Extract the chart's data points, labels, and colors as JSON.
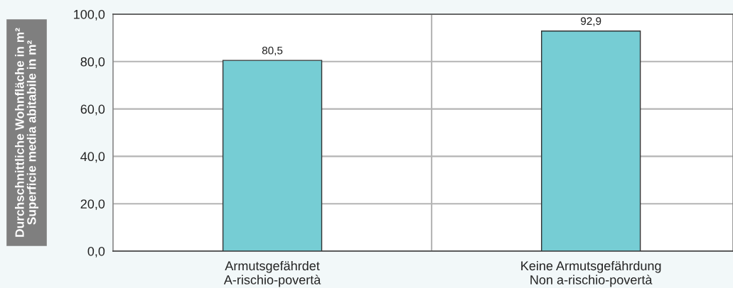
{
  "chart_data": {
    "type": "bar",
    "ylabel": "Durchschnittliche Wohnfläche in m²\nSuperficie media abitabile in m²",
    "categories": [
      "Armutsgefährdet\nA-rischio-povertà",
      "Keine Armutsgefährdung\nNon a-rischio-povertà"
    ],
    "values": [
      80.5,
      92.9
    ],
    "color": "#76cdd4",
    "value_labels": [
      "80,5",
      "92,9"
    ],
    "ylim": [
      0,
      100
    ],
    "yticks": [
      {
        "value": 0,
        "label": "0,0"
      },
      {
        "value": 20,
        "label": "20,0"
      },
      {
        "value": 40,
        "label": "40,0"
      },
      {
        "value": 60,
        "label": "60,0"
      },
      {
        "value": 80,
        "label": "80,0"
      },
      {
        "value": 100,
        "label": "100,0"
      }
    ],
    "grid": true
  }
}
